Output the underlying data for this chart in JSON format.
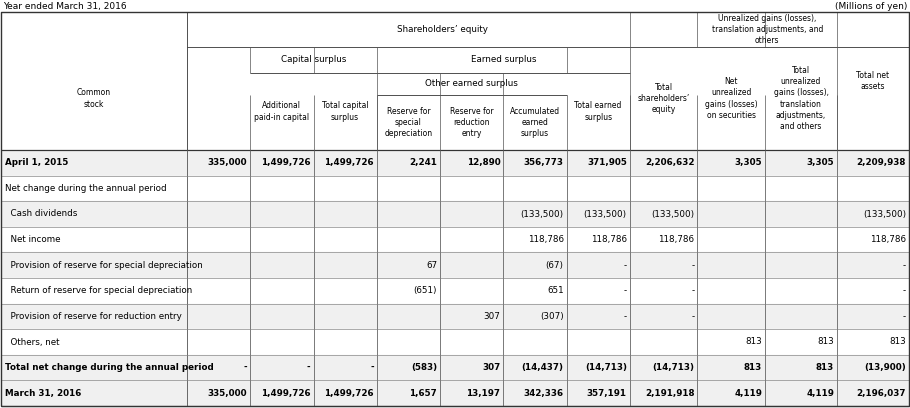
{
  "title_left": "Year ended March 31, 2016",
  "title_right": "(Millions of yen)",
  "col_headers": [
    "Common\nstock",
    "Additional\npaid-in capital",
    "Total capital\nsurplus",
    "Reserve for\nspecial\ndepreciation",
    "Reserve for\nreduction\nentry",
    "Accumulated\nearned\nsurplus",
    "Total earned\nsurplus",
    "Total\nshareholders’\nequity",
    "Net\nunrealized\ngains (losses)\non securities",
    "Total\nunrealized\ngains (losses),\ntranslation\nadjustments,\nand others",
    "Total net\nassets"
  ],
  "row_labels": [
    "April 1, 2015",
    "Net change during the annual period",
    "  Cash dividends",
    "  Net income",
    "  Provision of reserve for special depreciation",
    "  Return of reserve for special depreciation",
    "  Provision of reserve for reduction entry",
    "  Others, net",
    "Total net change during the annual period",
    "March 31, 2016"
  ],
  "data": [
    [
      "335,000",
      "1,499,726",
      "1,499,726",
      "2,241",
      "12,890",
      "356,773",
      "371,905",
      "2,206,632",
      "3,305",
      "3,305",
      "2,209,938"
    ],
    [
      "",
      "",
      "",
      "",
      "",
      "",
      "",
      "",
      "",
      "",
      ""
    ],
    [
      "",
      "",
      "",
      "",
      "",
      "(133,500)",
      "(133,500)",
      "(133,500)",
      "",
      "",
      "(133,500)"
    ],
    [
      "",
      "",
      "",
      "",
      "",
      "118,786",
      "118,786",
      "118,786",
      "",
      "",
      "118,786"
    ],
    [
      "",
      "",
      "",
      "67",
      "",
      "(67)",
      "-",
      "-",
      "",
      "",
      "-"
    ],
    [
      "",
      "",
      "",
      "(651)",
      "",
      "651",
      "-",
      "-",
      "",
      "",
      "-"
    ],
    [
      "",
      "",
      "",
      "",
      "307",
      "(307)",
      "-",
      "-",
      "",
      "",
      "-"
    ],
    [
      "",
      "",
      "",
      "",
      "",
      "",
      "",
      "",
      "813",
      "813",
      "813"
    ],
    [
      "-",
      "-",
      "-",
      "(583)",
      "307",
      "(14,437)",
      "(14,713)",
      "(14,713)",
      "813",
      "813",
      "(13,900)"
    ],
    [
      "335,000",
      "1,499,726",
      "1,499,726",
      "1,657",
      "13,197",
      "342,336",
      "357,191",
      "2,191,918",
      "4,119",
      "4,119",
      "2,196,037"
    ]
  ],
  "bold_rows": [
    0,
    8,
    9
  ],
  "row_bg": [
    "#f0f0f0",
    "#ffffff",
    "#f0f0f0",
    "#ffffff",
    "#f0f0f0",
    "#ffffff",
    "#f0f0f0",
    "#ffffff",
    "#f0f0f0",
    "#f0f0f0"
  ],
  "figsize": [
    9.1,
    4.08
  ],
  "dpi": 100
}
